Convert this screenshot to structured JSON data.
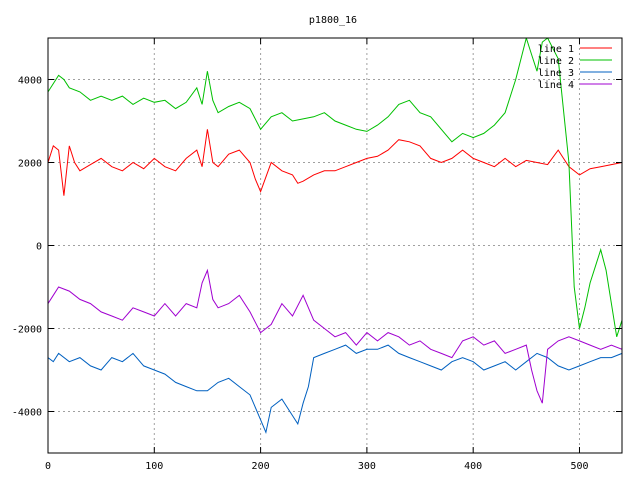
{
  "chart_data": {
    "type": "line",
    "title": "p1800_16",
    "xlabel": "",
    "ylabel": "",
    "xlim": [
      0,
      540
    ],
    "ylim": [
      -5000,
      5000
    ],
    "x_ticks": [
      0,
      100,
      200,
      300,
      400,
      500
    ],
    "y_ticks": [
      -4000,
      -2000,
      0,
      2000,
      4000
    ],
    "grid": true,
    "legend_position": "top-right",
    "series": [
      {
        "name": "line 1",
        "color": "#ff0000",
        "x": [
          0,
          5,
          10,
          15,
          20,
          25,
          30,
          40,
          50,
          60,
          70,
          80,
          90,
          100,
          110,
          120,
          130,
          140,
          145,
          150,
          155,
          160,
          170,
          180,
          190,
          195,
          200,
          210,
          220,
          230,
          235,
          240,
          250,
          260,
          270,
          280,
          290,
          300,
          310,
          320,
          330,
          340,
          350,
          360,
          370,
          380,
          390,
          400,
          410,
          420,
          430,
          440,
          450,
          460,
          470,
          480,
          490,
          500,
          510,
          520,
          530,
          540
        ],
        "y": [
          2000,
          2400,
          2300,
          1200,
          2400,
          2000,
          1800,
          1950,
          2100,
          1900,
          1800,
          2000,
          1850,
          2100,
          1900,
          1800,
          2100,
          2300,
          1900,
          2800,
          2000,
          1900,
          2200,
          2300,
          2000,
          1600,
          1300,
          2000,
          1800,
          1700,
          1500,
          1550,
          1700,
          1800,
          1800,
          1900,
          2000,
          2100,
          2150,
          2300,
          2550,
          2500,
          2400,
          2100,
          2000,
          2100,
          2300,
          2100,
          2000,
          1900,
          2100,
          1900,
          2050,
          2000,
          1950,
          2300,
          1900,
          1700,
          1850,
          1900,
          1950,
          2000
        ]
      },
      {
        "name": "line 2",
        "color": "#00c000",
        "x": [
          0,
          5,
          10,
          15,
          20,
          30,
          40,
          50,
          60,
          70,
          80,
          90,
          100,
          110,
          120,
          130,
          140,
          145,
          150,
          155,
          160,
          170,
          180,
          190,
          200,
          210,
          220,
          230,
          240,
          250,
          260,
          270,
          280,
          290,
          300,
          310,
          320,
          330,
          340,
          350,
          360,
          370,
          380,
          390,
          400,
          410,
          420,
          430,
          440,
          445,
          450,
          455,
          460,
          465,
          470,
          480,
          490,
          495,
          500,
          505,
          510,
          515,
          520,
          525,
          530,
          535,
          540
        ],
        "y": [
          3700,
          3900,
          4100,
          4000,
          3800,
          3700,
          3500,
          3600,
          3500,
          3600,
          3400,
          3550,
          3450,
          3500,
          3300,
          3450,
          3800,
          3400,
          4200,
          3500,
          3200,
          3350,
          3450,
          3300,
          2800,
          3100,
          3200,
          3000,
          3050,
          3100,
          3200,
          3000,
          2900,
          2800,
          2750,
          2900,
          3100,
          3400,
          3500,
          3200,
          3100,
          2800,
          2500,
          2700,
          2600,
          2700,
          2900,
          3200,
          4000,
          4500,
          5000,
          4600,
          4200,
          4900,
          5000,
          4500,
          2000,
          -1000,
          -2000,
          -1500,
          -900,
          -500,
          -100,
          -600,
          -1400,
          -2200,
          -1800
        ]
      },
      {
        "name": "line 3",
        "color": "#0060c0",
        "x": [
          0,
          5,
          10,
          20,
          30,
          40,
          50,
          60,
          70,
          80,
          90,
          100,
          110,
          120,
          130,
          140,
          150,
          160,
          170,
          180,
          190,
          200,
          205,
          210,
          220,
          230,
          235,
          240,
          245,
          250,
          260,
          270,
          280,
          290,
          300,
          310,
          320,
          330,
          340,
          350,
          360,
          370,
          380,
          390,
          400,
          410,
          420,
          430,
          440,
          450,
          460,
          470,
          480,
          490,
          500,
          510,
          520,
          530,
          540
        ],
        "y": [
          -2700,
          -2800,
          -2600,
          -2800,
          -2700,
          -2900,
          -3000,
          -2700,
          -2800,
          -2600,
          -2900,
          -3000,
          -3100,
          -3300,
          -3400,
          -3500,
          -3500,
          -3300,
          -3200,
          -3400,
          -3600,
          -4200,
          -4500,
          -3900,
          -3700,
          -4100,
          -4300,
          -3800,
          -3400,
          -2700,
          -2600,
          -2500,
          -2400,
          -2600,
          -2500,
          -2500,
          -2400,
          -2600,
          -2700,
          -2800,
          -2900,
          -3000,
          -2800,
          -2700,
          -2800,
          -3000,
          -2900,
          -2800,
          -3000,
          -2800,
          -2600,
          -2700,
          -2900,
          -3000,
          -2900,
          -2800,
          -2700,
          -2700,
          -2600
        ]
      },
      {
        "name": "line 4",
        "color": "#a000d0",
        "x": [
          0,
          5,
          10,
          20,
          30,
          40,
          50,
          60,
          70,
          80,
          90,
          100,
          110,
          120,
          130,
          140,
          145,
          150,
          155,
          160,
          170,
          180,
          190,
          200,
          210,
          220,
          230,
          240,
          250,
          260,
          270,
          280,
          290,
          300,
          310,
          320,
          330,
          340,
          350,
          360,
          370,
          380,
          390,
          400,
          410,
          420,
          430,
          440,
          450,
          455,
          460,
          465,
          470,
          480,
          490,
          500,
          510,
          520,
          530,
          540
        ],
        "y": [
          -1400,
          -1200,
          -1000,
          -1100,
          -1300,
          -1400,
          -1600,
          -1700,
          -1800,
          -1500,
          -1600,
          -1700,
          -1400,
          -1700,
          -1400,
          -1500,
          -900,
          -600,
          -1300,
          -1500,
          -1400,
          -1200,
          -1600,
          -2100,
          -1900,
          -1400,
          -1700,
          -1200,
          -1800,
          -2000,
          -2200,
          -2100,
          -2400,
          -2100,
          -2300,
          -2100,
          -2200,
          -2400,
          -2300,
          -2500,
          -2600,
          -2700,
          -2300,
          -2200,
          -2400,
          -2300,
          -2600,
          -2500,
          -2400,
          -3000,
          -3500,
          -3800,
          -2500,
          -2300,
          -2200,
          -2300,
          -2400,
          -2500,
          -2400,
          -2500
        ]
      }
    ]
  }
}
